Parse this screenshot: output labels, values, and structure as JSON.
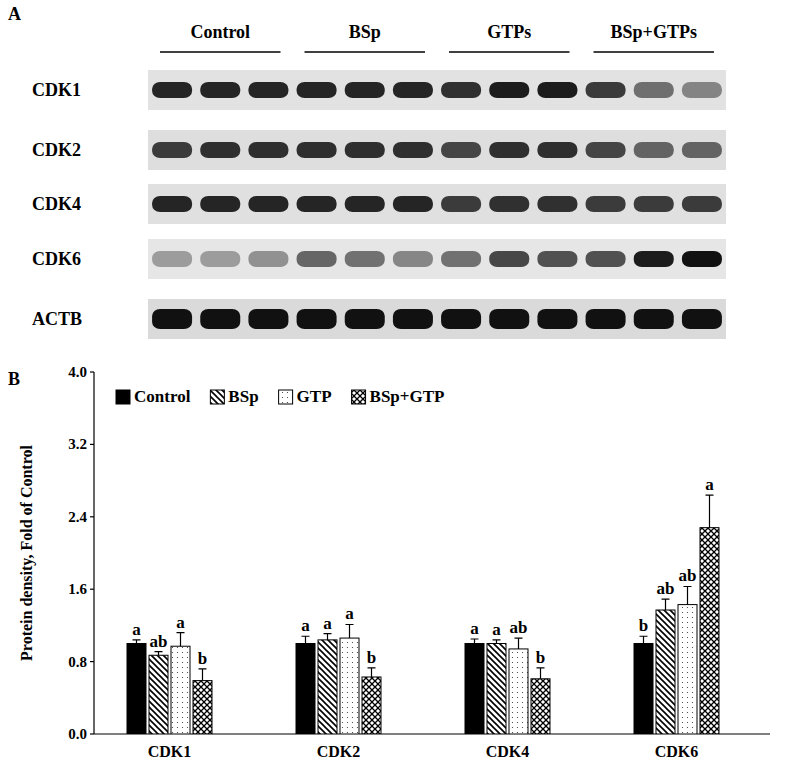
{
  "panel_labels": [
    "A",
    "B"
  ],
  "blot": {
    "groups": [
      "Control",
      "BSp",
      "GTPs",
      "BSp+GTPs"
    ],
    "lanes_per_group": 3,
    "proteins": [
      "CDK1",
      "CDK2",
      "CDK4",
      "CDK6",
      "ACTB"
    ]
  },
  "chart_data": {
    "type": "bar",
    "y_label": "Protein density, Fold of Control",
    "categories": [
      "CDK1",
      "CDK2",
      "CDK4",
      "CDK6"
    ],
    "series": [
      {
        "name": "Control",
        "color": "#000000",
        "values": [
          1.0,
          1.0,
          1.0,
          1.0
        ],
        "errors": [
          0.04,
          0.08,
          0.05,
          0.08
        ],
        "letters": [
          "a",
          "a",
          "a",
          "b"
        ]
      },
      {
        "name": "BSp",
        "color": "#000000",
        "values": [
          0.87,
          1.04,
          1.0,
          1.37
        ],
        "errors": [
          0.04,
          0.07,
          0.04,
          0.12
        ],
        "letters": [
          "ab",
          "a",
          "a",
          "ab"
        ]
      },
      {
        "name": "GTP",
        "color": "#ffffff",
        "values": [
          0.97,
          1.06,
          0.94,
          1.43
        ],
        "errors": [
          0.15,
          0.15,
          0.12,
          0.2
        ],
        "letters": [
          "a",
          "a",
          "ab",
          "ab"
        ]
      },
      {
        "name": "BSp+GTP",
        "color": "#000000",
        "values": [
          0.59,
          0.63,
          0.61,
          2.28
        ],
        "errors": [
          0.13,
          0.1,
          0.12,
          0.36
        ],
        "letters": [
          "b",
          "b",
          "b",
          "a"
        ]
      }
    ],
    "ylim": [
      0,
      4
    ],
    "yticks": [
      {
        "value": 0,
        "label": "0.0"
      },
      0.8,
      1.6,
      2.4,
      3.2,
      {
        "value": 4,
        "label": "4.0"
      }
    ],
    "legend": "upper left",
    "grid": false
  }
}
